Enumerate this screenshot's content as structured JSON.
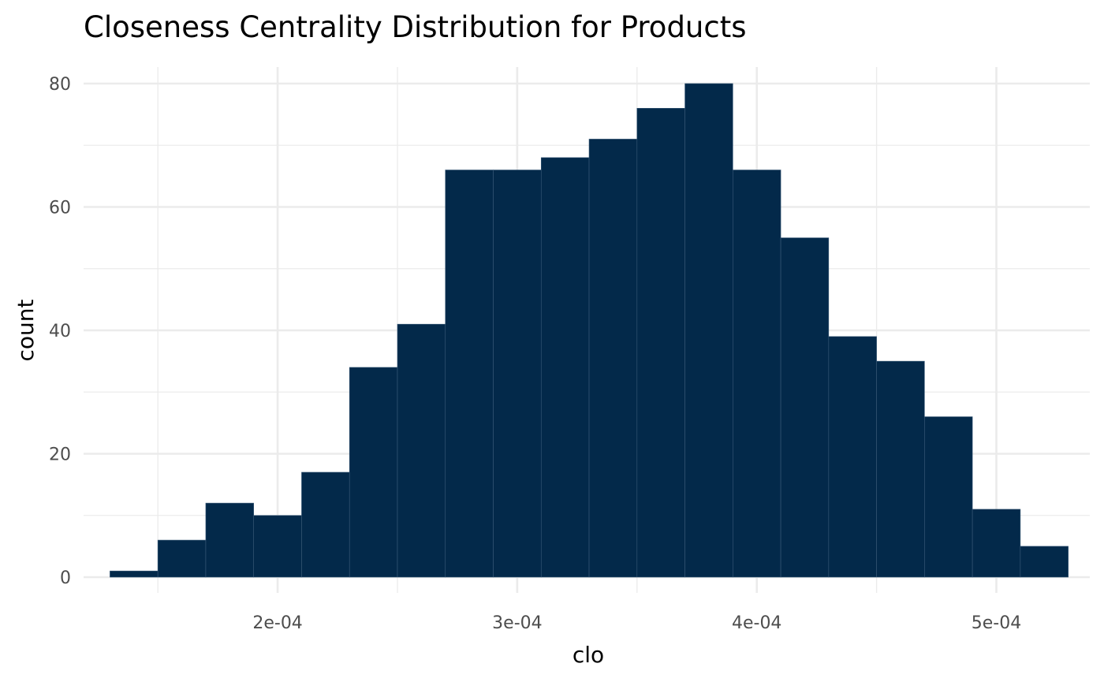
{
  "chart_data": {
    "type": "histogram",
    "title": "Closeness Centrality Distribution for Products",
    "xlabel": "clo",
    "ylabel": "count",
    "bin_width": 2e-05,
    "bin_starts": [
      0.00013,
      0.00015,
      0.00017,
      0.00019,
      0.00021,
      0.00023,
      0.00025,
      0.00027,
      0.00029,
      0.00031,
      0.00033,
      0.00035,
      0.00037,
      0.00039,
      0.00041,
      0.00043,
      0.00045,
      0.00047,
      0.00049,
      0.00051
    ],
    "counts": [
      1,
      6,
      12,
      10,
      17,
      34,
      41,
      66,
      66,
      68,
      71,
      76,
      80,
      66,
      55,
      39,
      35,
      26,
      11,
      5
    ],
    "xlim": [
      0.000119,
      0.000539
    ],
    "ylim": [
      0,
      80
    ],
    "x_ticks": [
      0.0002,
      0.0003,
      0.0004,
      0.0005
    ],
    "x_tick_labels": [
      "2e-04",
      "3e-04",
      "4e-04",
      "5e-04"
    ],
    "y_ticks": [
      0,
      20,
      40,
      60,
      80
    ],
    "y_tick_labels": [
      "0",
      "20",
      "40",
      "60",
      "80"
    ],
    "grid": true,
    "bar_color": "#03294a",
    "grid_color": "#ebebeb"
  }
}
